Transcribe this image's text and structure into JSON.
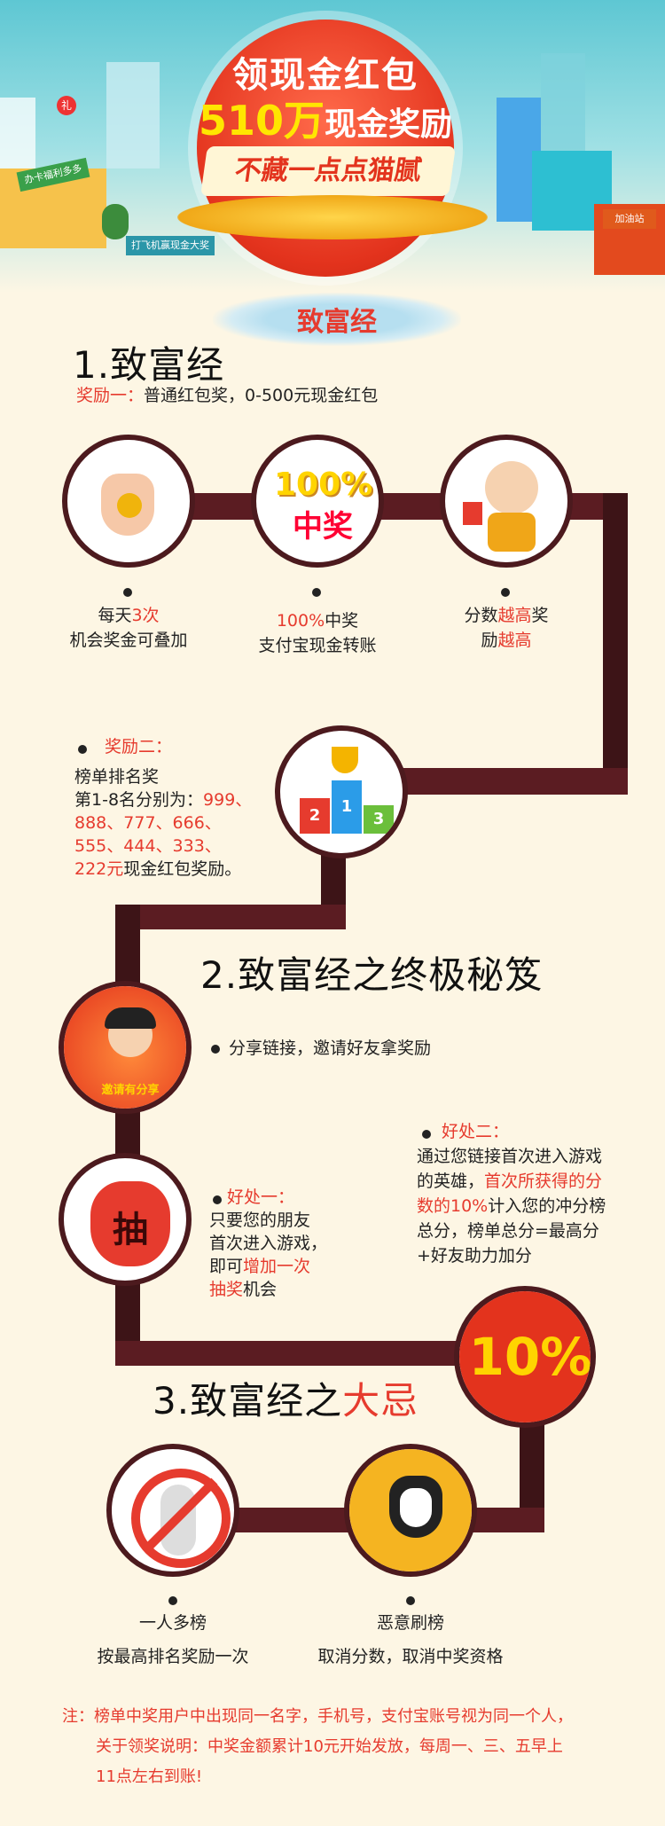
{
  "hero": {
    "title_line1": "领现金红包",
    "title_amount": "510万",
    "title_suffix": "现金奖励",
    "ribbon": "不藏一点点猫腻",
    "sign_left": "办卡福利多多",
    "sign_bottom": "打飞机赢现金大奖",
    "sign_right": "加油站",
    "gift_badge": "礼"
  },
  "brush_title": "致富经",
  "section1": {
    "heading": "1.致富经",
    "reward1_prefix": "奖励一：",
    "reward1_text": "普通红包奖，0-500元现金红包",
    "nodes": [
      {
        "icon": "ok-hand-coin-icon",
        "line1_a": "每天",
        "line1_b": "3次",
        "line2": "机会奖金可叠加"
      },
      {
        "icon": "100-percent-win-icon",
        "badge_top": "100%",
        "badge_bottom": "中奖",
        "line1_a": "100%",
        "line1_b": "中奖",
        "line2": "支付宝现金转账"
      },
      {
        "icon": "happy-jumping-man-icon",
        "line1_a": "分数",
        "line1_b": "越高",
        "line1_c": "奖",
        "line2_a": "励",
        "line2_b": "越高"
      }
    ],
    "reward2_title": "奖励二：",
    "reward2_line1": "榜单排名奖",
    "reward2_line2_a": "第1-8名分别为：",
    "reward2_line2_b": "999、",
    "reward2_line3": "888、777、666、",
    "reward2_line4": "555、444、333、",
    "reward2_line5_a": "222元",
    "reward2_line5_b": "现金红包奖励。",
    "podium": {
      "first": "1",
      "second": "2",
      "third": "3"
    }
  },
  "section2": {
    "heading": "2.致富经之终极秘笈",
    "share_text": "分享链接，邀请好友拿奖励",
    "share_badge": "邀请有分享",
    "benefit1_title": "好处一：",
    "benefit1_line1": "只要您的朋友",
    "benefit1_line2": "首次进入游戏，",
    "benefit1_line3_a": "即可",
    "benefit1_line3_b": "增加一次",
    "benefit1_line4_a": "抽奖",
    "benefit1_line4_b": "机会",
    "bag_char": "抽",
    "benefit2_title": "好处二：",
    "benefit2_line1": "通过您链接首次进入游戏",
    "benefit2_line2_a": "的英雄，",
    "benefit2_line2_b": "首次所获得的分",
    "benefit2_line3_a": "数的10%",
    "benefit2_line3_b": "计入您的冲分榜",
    "benefit2_line4": "总分，榜单总分=最高分",
    "benefit2_line5": "+好友助力加分",
    "ten_percent": "10%"
  },
  "section3": {
    "heading_a": "3.致富经之",
    "heading_b": "大忌",
    "taboo1_title": "一人多榜",
    "taboo1_desc": "按最高排名奖励一次",
    "taboo2_title": "恶意刷榜",
    "taboo2_desc": "取消分数，取消中奖资格"
  },
  "note": {
    "line1_a": "注：",
    "line1_b": "榜单中奖用户中出现同一名字，手机号，支付宝账号视为同一个人，",
    "line2": "关于领奖说明：中奖金额累计10元开始发放，每周一、三、五早上",
    "line3": "11点左右到账!"
  }
}
